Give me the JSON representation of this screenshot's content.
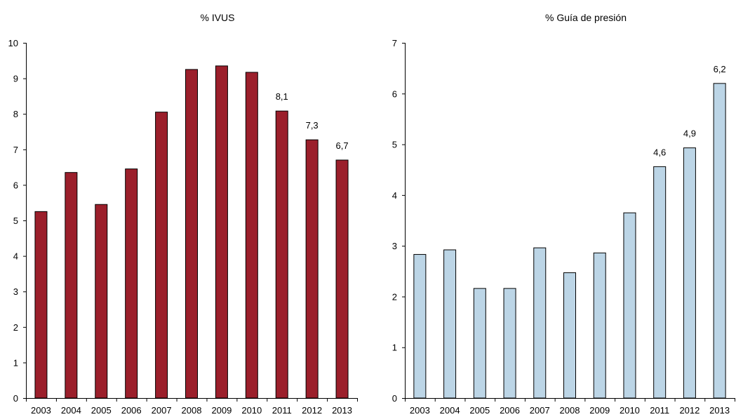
{
  "chart_data": [
    {
      "type": "bar",
      "title": "% IVUS",
      "xlabel": "",
      "ylabel": "",
      "categories": [
        "2003",
        "2004",
        "2005",
        "2006",
        "2007",
        "2008",
        "2009",
        "2010",
        "2011",
        "2012",
        "2013"
      ],
      "values": [
        5.25,
        6.35,
        5.45,
        6.45,
        8.05,
        9.25,
        9.35,
        9.17,
        8.08,
        7.27,
        6.7
      ],
      "data_labels": [
        "",
        "",
        "",
        "",
        "",
        "",
        "",
        "",
        "8,1",
        "7,3",
        "6,7"
      ],
      "ylim": [
        0,
        10
      ],
      "yticks": [
        "0",
        "1",
        "2",
        "3",
        "4",
        "5",
        "6",
        "7",
        "8",
        "9",
        "10"
      ],
      "bar_color": "#9b1f2b",
      "grid": false,
      "legend": "none"
    },
    {
      "type": "bar",
      "title": "% Guía de presión",
      "xlabel": "",
      "ylabel": "",
      "categories": [
        "2003",
        "2004",
        "2005",
        "2006",
        "2007",
        "2008",
        "2009",
        "2010",
        "2011",
        "2012",
        "2013"
      ],
      "values": [
        2.83,
        2.92,
        2.16,
        2.16,
        2.96,
        2.47,
        2.86,
        3.65,
        4.56,
        4.93,
        6.2
      ],
      "data_labels": [
        "",
        "",
        "",
        "",
        "",
        "",
        "",
        "",
        "4,6",
        "4,9",
        "6,2"
      ],
      "ylim": [
        0,
        7
      ],
      "yticks": [
        "0",
        "1",
        "2",
        "3",
        "4",
        "5",
        "6",
        "7"
      ],
      "bar_color": "#bcd5e6",
      "grid": false,
      "legend": "none"
    }
  ]
}
